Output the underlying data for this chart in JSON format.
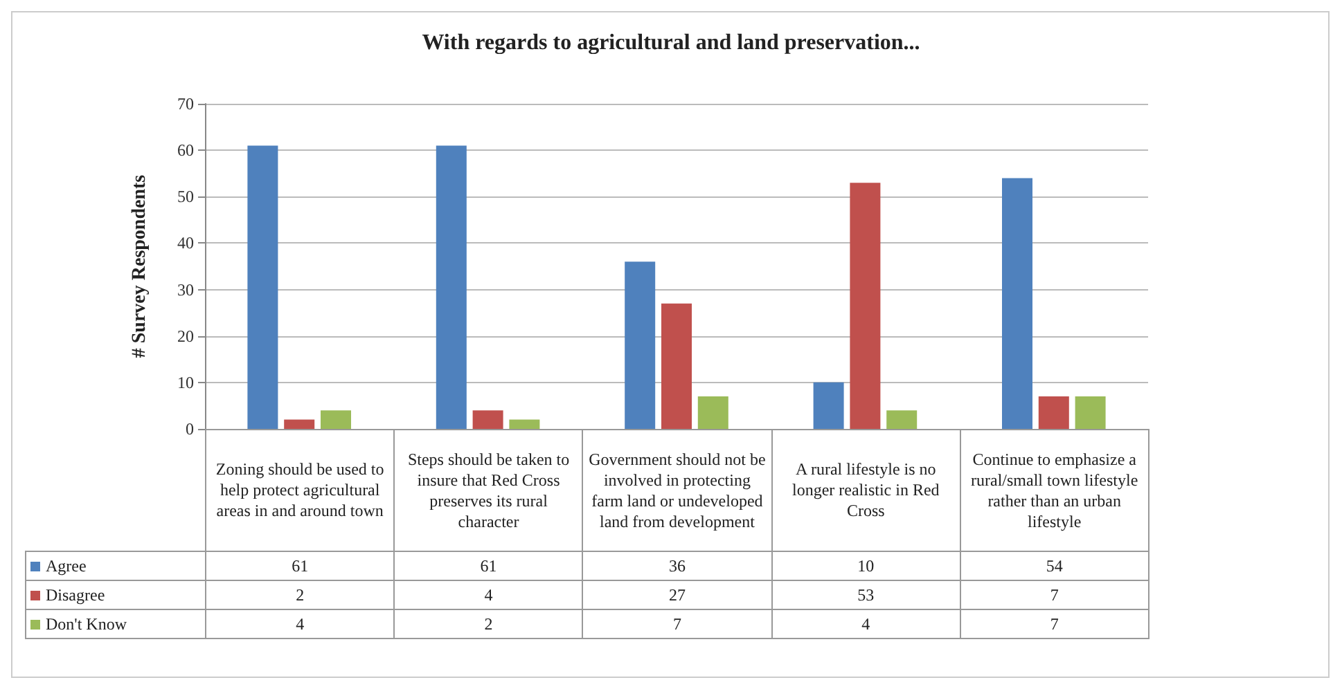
{
  "chart_data": {
    "type": "bar",
    "title": "With regards to agricultural and land preservation...",
    "ylabel": "# Survey Respondents",
    "categories": [
      "Zoning should be used to help protect agricultural areas in and around town",
      "Steps should be taken to insure that Red Cross preserves its rural character",
      "Government should not be involved in protecting farm land or undeveloped land from development",
      "A rural lifestyle is no longer realistic in Red Cross",
      "Continue to emphasize a rural/small town lifestyle rather than an urban lifestyle"
    ],
    "series": [
      {
        "name": "Agree",
        "color": "#4f81bd",
        "values": [
          61,
          61,
          36,
          10,
          54
        ]
      },
      {
        "name": "Disagree",
        "color": "#c0504d",
        "values": [
          2,
          4,
          27,
          53,
          7
        ]
      },
      {
        "name": "Don't Know",
        "color": "#9bbb59",
        "values": [
          4,
          2,
          7,
          4,
          7
        ]
      }
    ],
    "ylim": [
      0,
      70
    ],
    "yticks": [
      0,
      10,
      20,
      30,
      40,
      50,
      60,
      70
    ],
    "grid": "y",
    "legend": "bottom left",
    "data_labels": true
  }
}
